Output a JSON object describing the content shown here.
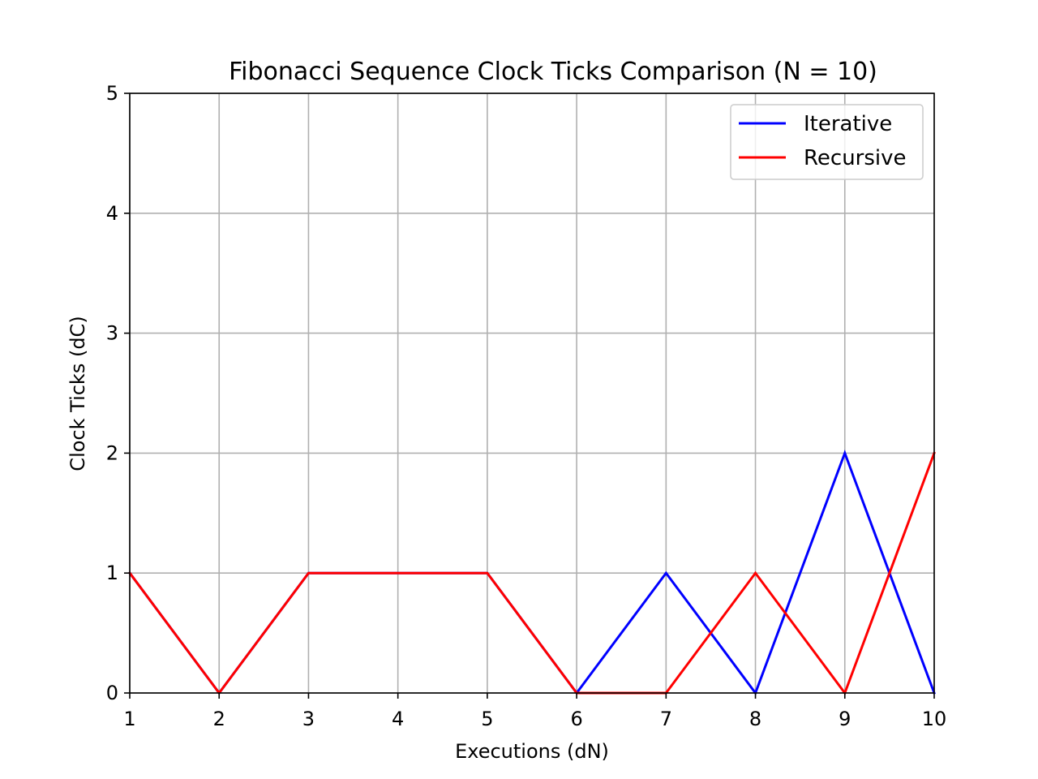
{
  "chart_data": {
    "type": "line",
    "title": "Fibonacci Sequence Clock Ticks Comparison (N = 10)",
    "xlabel": "Executions (dN)",
    "ylabel": "Clock Ticks (dC)",
    "x": [
      1,
      2,
      3,
      4,
      5,
      6,
      7,
      8,
      9,
      10
    ],
    "xlim": [
      1,
      10
    ],
    "ylim": [
      0,
      5
    ],
    "xticks": [
      1,
      2,
      3,
      4,
      5,
      6,
      7,
      8,
      9,
      10
    ],
    "yticks": [
      0,
      1,
      2,
      3,
      4,
      5
    ],
    "grid": true,
    "legend_position": "top-right",
    "series": [
      {
        "name": "Iterative",
        "color": "#0000ff",
        "values": [
          1,
          0,
          1,
          1,
          1,
          0,
          1,
          0,
          2,
          0
        ]
      },
      {
        "name": "Recursive",
        "color": "#ff0000",
        "values": [
          1,
          0,
          1,
          1,
          1,
          0,
          0,
          1,
          0,
          2
        ]
      }
    ]
  }
}
